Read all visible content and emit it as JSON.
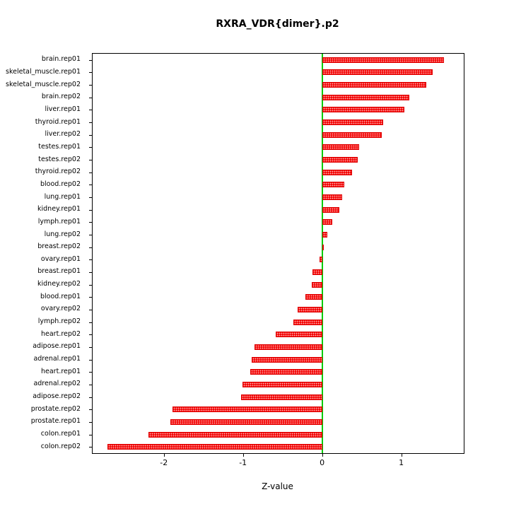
{
  "chart_data": {
    "type": "bar",
    "orientation": "horizontal",
    "title": "RXRA_VDR{dimer}.p2",
    "xlabel": "Z-value",
    "ylabel": "",
    "xlim": [
      -2.9,
      1.79
    ],
    "x_ticks": [
      -2,
      -1,
      0,
      1
    ],
    "grid": false,
    "legend": "none",
    "bar_color": "#ff0000",
    "zero_line_color": "#00cc00",
    "categories": [
      "brain.rep01",
      "skeletal_muscle.rep01",
      "skeletal_muscle.rep02",
      "brain.rep02",
      "liver.rep01",
      "thyroid.rep01",
      "liver.rep02",
      "testes.rep01",
      "testes.rep02",
      "thyroid.rep02",
      "blood.rep02",
      "lung.rep01",
      "kidney.rep01",
      "lymph.rep01",
      "lung.rep02",
      "breast.rep02",
      "ovary.rep01",
      "breast.rep01",
      "kidney.rep02",
      "blood.rep01",
      "ovary.rep02",
      "lymph.rep02",
      "heart.rep02",
      "adipose.rep01",
      "adrenal.rep01",
      "heart.rep01",
      "adrenal.rep02",
      "adipose.rep02",
      "prostate.rep02",
      "prostate.rep01",
      "colon.rep01",
      "colon.rep02"
    ],
    "values": [
      1.54,
      1.4,
      1.32,
      1.1,
      1.04,
      0.77,
      0.75,
      0.47,
      0.45,
      0.38,
      0.28,
      0.25,
      0.22,
      0.13,
      0.07,
      0.01,
      -0.03,
      -0.12,
      -0.13,
      -0.21,
      -0.31,
      -0.36,
      -0.59,
      -0.85,
      -0.89,
      -0.91,
      -1.01,
      -1.02,
      -1.89,
      -1.92,
      -2.19,
      -2.71
    ]
  }
}
